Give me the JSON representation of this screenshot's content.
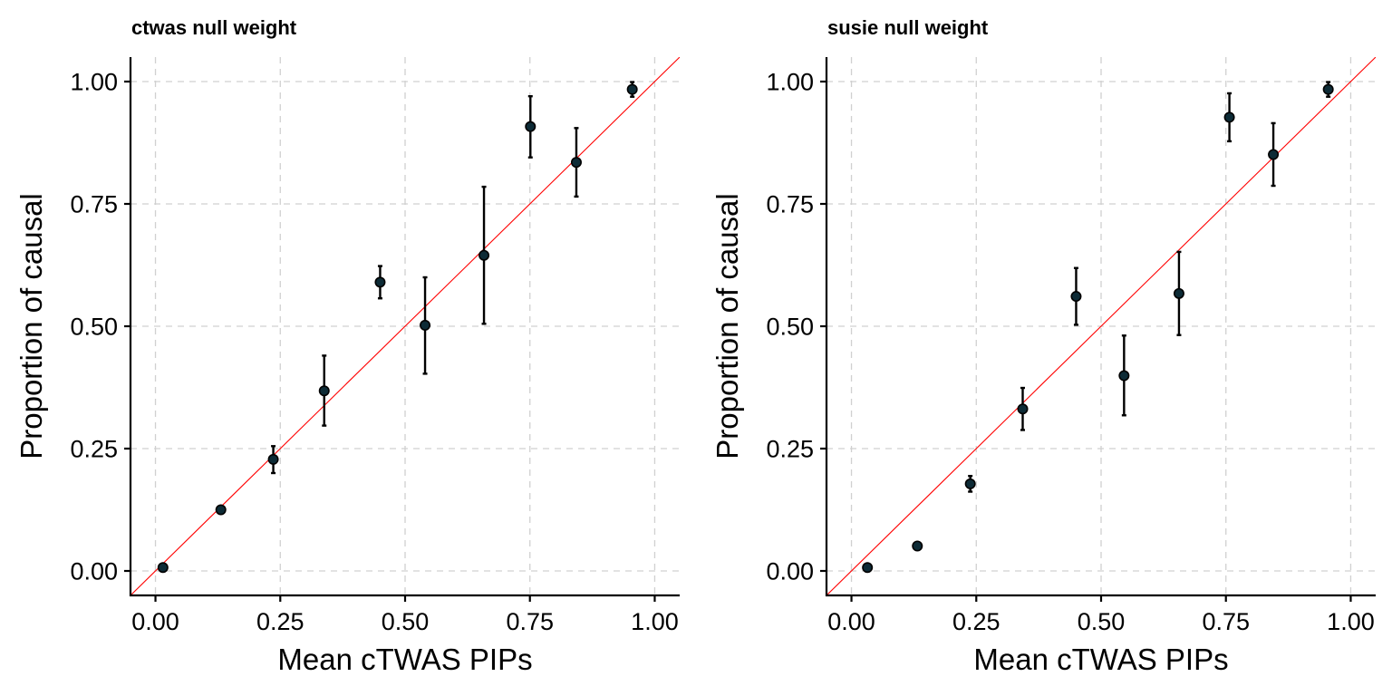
{
  "chart_data": [
    {
      "type": "scatter",
      "title": "ctwas null weight",
      "xlabel": "Mean cTWAS PIPs",
      "ylabel": "Proportion of causal",
      "xlim": [
        -0.05,
        1.05
      ],
      "ylim": [
        -0.05,
        1.05
      ],
      "xticks": [
        "0.00",
        "0.25",
        "0.50",
        "0.75",
        "1.00"
      ],
      "yticks": [
        "0.00",
        "0.25",
        "0.50",
        "0.75",
        "1.00"
      ],
      "grid": true,
      "reference_line": "y = x",
      "points": [
        {
          "x": 0.015,
          "y": 0.007,
          "lo": 0.004,
          "hi": 0.01
        },
        {
          "x": 0.131,
          "y": 0.125,
          "lo": 0.119,
          "hi": 0.131
        },
        {
          "x": 0.236,
          "y": 0.228,
          "lo": 0.2,
          "hi": 0.255
        },
        {
          "x": 0.338,
          "y": 0.368,
          "lo": 0.297,
          "hi": 0.44
        },
        {
          "x": 0.45,
          "y": 0.59,
          "lo": 0.557,
          "hi": 0.623
        },
        {
          "x": 0.54,
          "y": 0.502,
          "lo": 0.403,
          "hi": 0.6
        },
        {
          "x": 0.658,
          "y": 0.645,
          "lo": 0.505,
          "hi": 0.785
        },
        {
          "x": 0.751,
          "y": 0.908,
          "lo": 0.845,
          "hi": 0.97
        },
        {
          "x": 0.843,
          "y": 0.835,
          "lo": 0.765,
          "hi": 0.905
        },
        {
          "x": 0.955,
          "y": 0.984,
          "lo": 0.969,
          "hi": 0.999
        }
      ]
    },
    {
      "type": "scatter",
      "title": "susie null weight",
      "xlabel": "Mean cTWAS PIPs",
      "ylabel": "Proportion of causal",
      "xlim": [
        -0.05,
        1.05
      ],
      "ylim": [
        -0.05,
        1.05
      ],
      "xticks": [
        "0.00",
        "0.25",
        "0.50",
        "0.75",
        "1.00"
      ],
      "yticks": [
        "0.00",
        "0.25",
        "0.50",
        "0.75",
        "1.00"
      ],
      "grid": true,
      "reference_line": "y = x",
      "points": [
        {
          "x": 0.032,
          "y": 0.007,
          "lo": 0.004,
          "hi": 0.01
        },
        {
          "x": 0.132,
          "y": 0.051,
          "lo": 0.047,
          "hi": 0.055
        },
        {
          "x": 0.238,
          "y": 0.178,
          "lo": 0.162,
          "hi": 0.194
        },
        {
          "x": 0.343,
          "y": 0.331,
          "lo": 0.288,
          "hi": 0.374
        },
        {
          "x": 0.45,
          "y": 0.561,
          "lo": 0.503,
          "hi": 0.619
        },
        {
          "x": 0.546,
          "y": 0.399,
          "lo": 0.318,
          "hi": 0.481
        },
        {
          "x": 0.656,
          "y": 0.567,
          "lo": 0.482,
          "hi": 0.652
        },
        {
          "x": 0.757,
          "y": 0.927,
          "lo": 0.878,
          "hi": 0.976
        },
        {
          "x": 0.845,
          "y": 0.851,
          "lo": 0.787,
          "hi": 0.915
        },
        {
          "x": 0.955,
          "y": 0.984,
          "lo": 0.969,
          "hi": 0.999
        }
      ]
    }
  ],
  "colors": {
    "point_fill": "#0d2b36",
    "point_stroke": "#000000",
    "reference_line": "#ff0000",
    "grid": "#d0d0d0"
  }
}
